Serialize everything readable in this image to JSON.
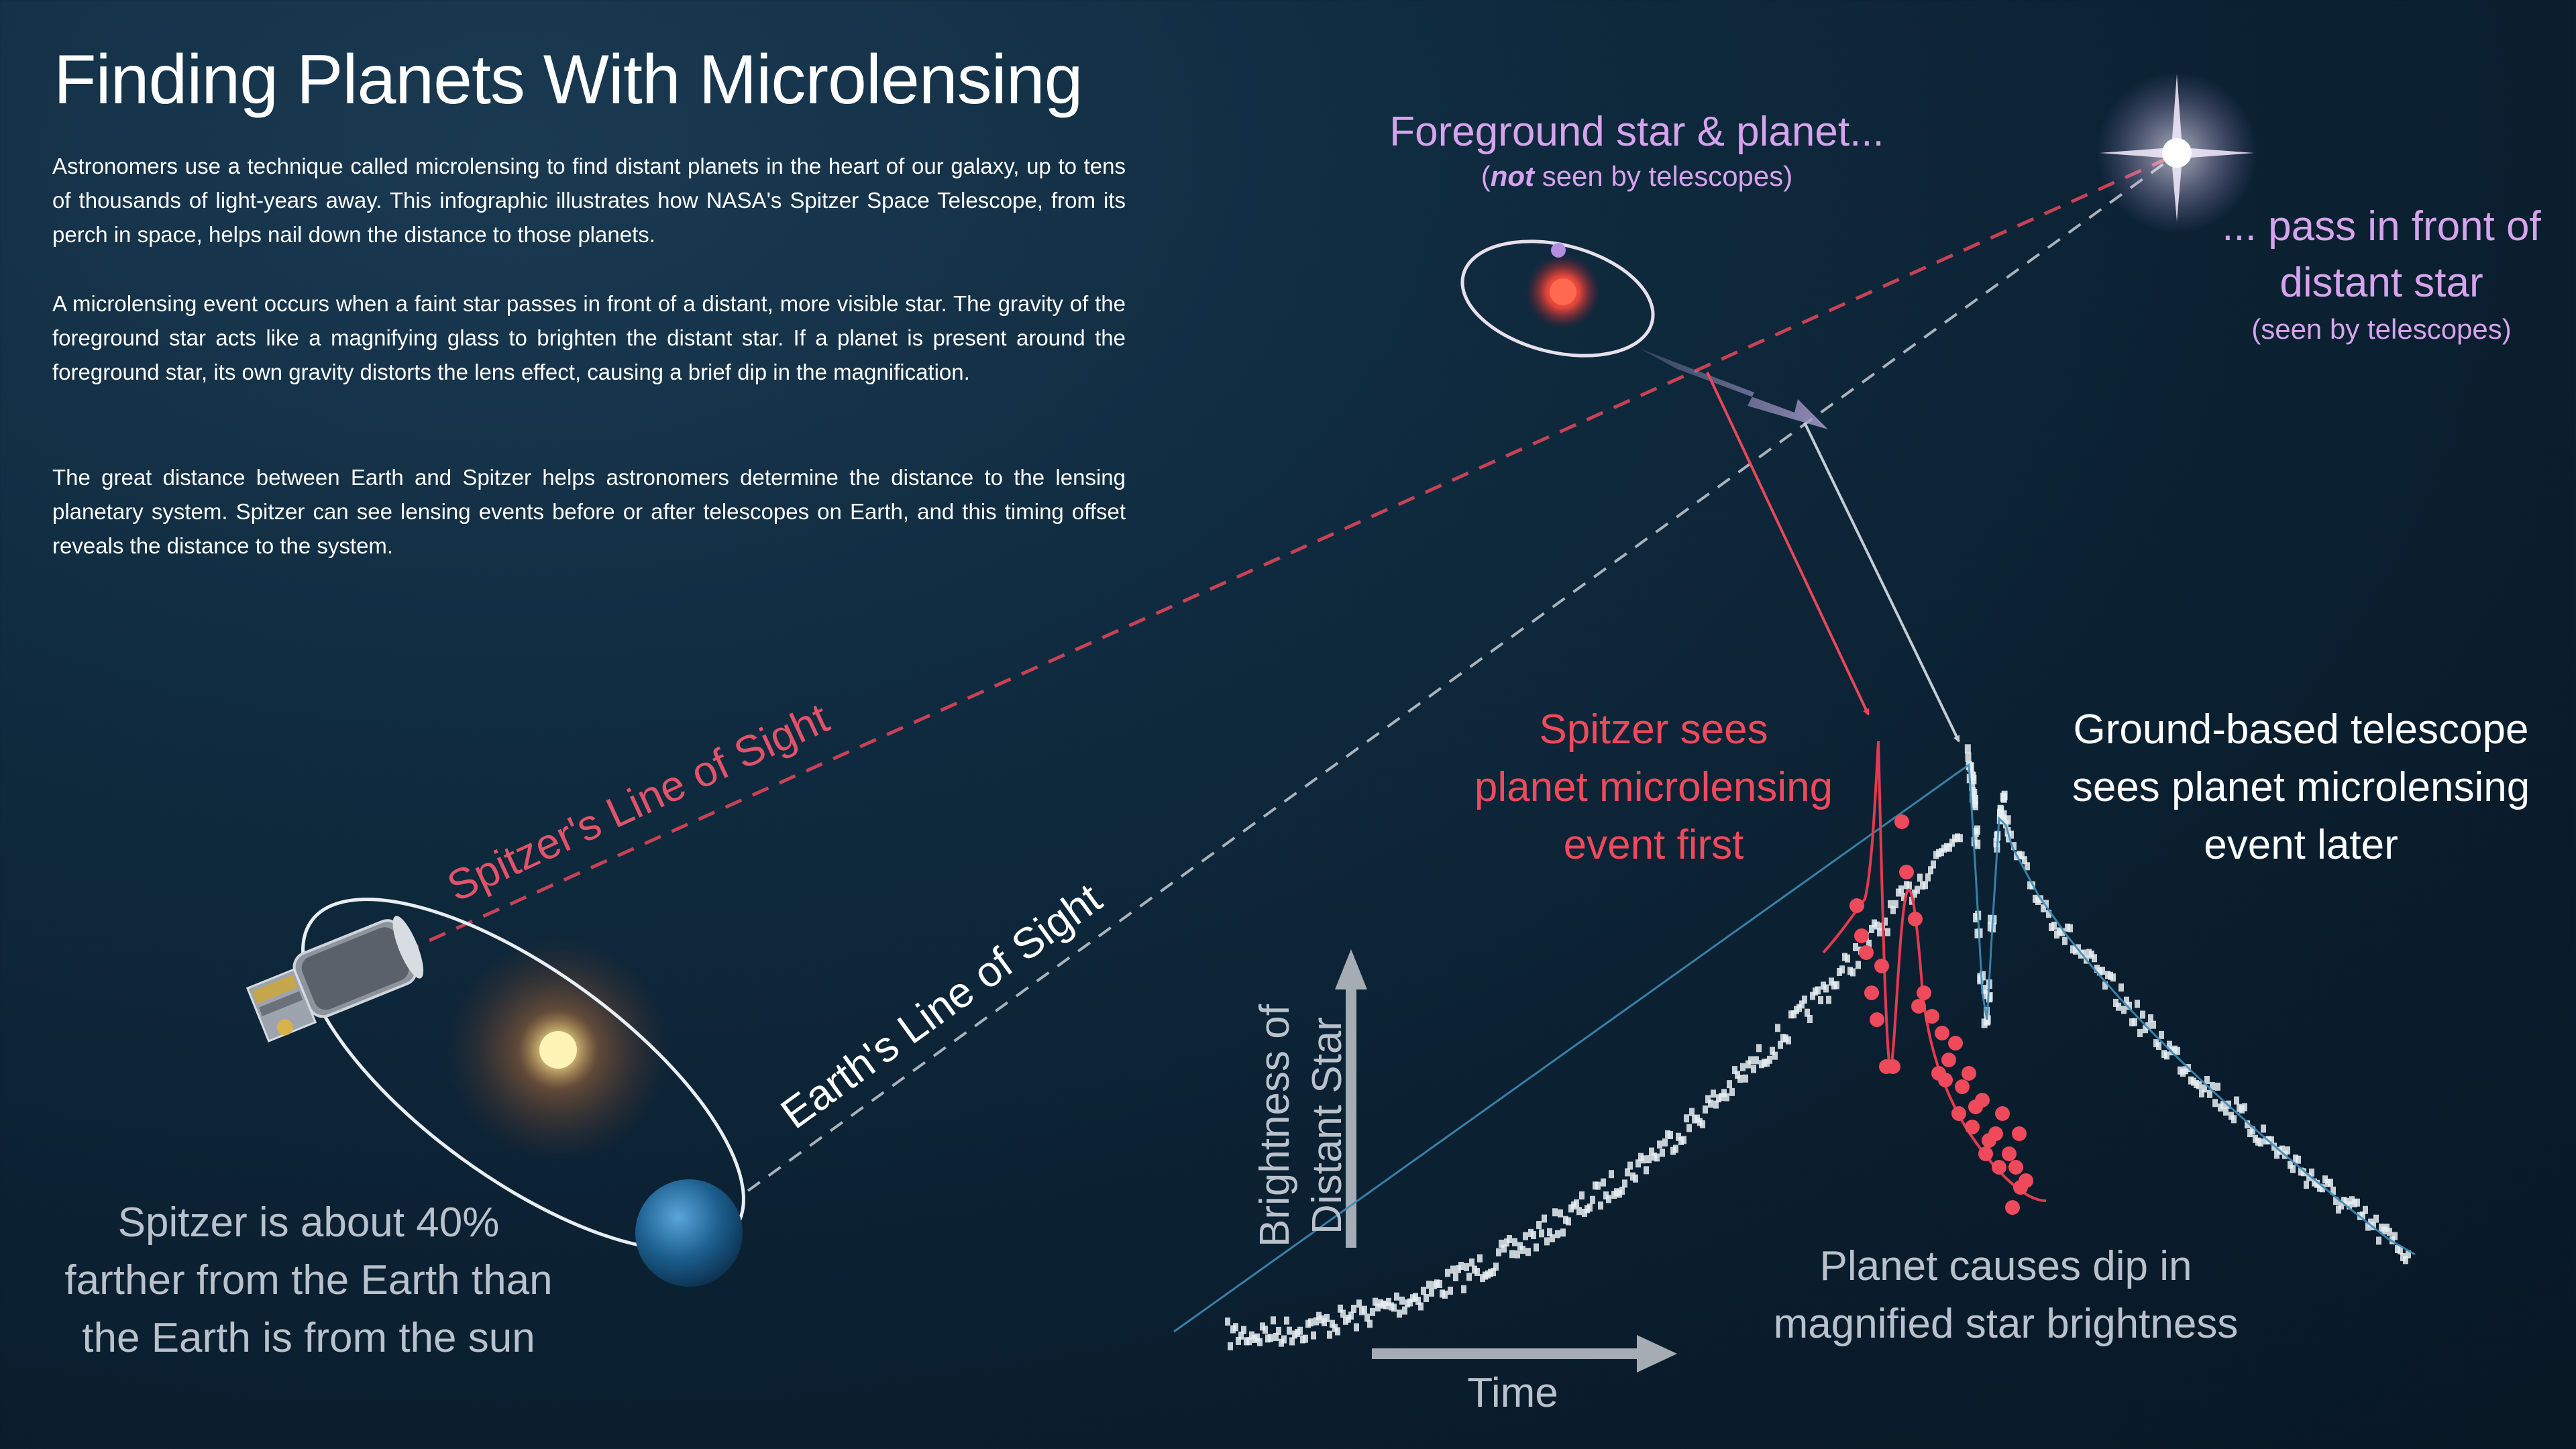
{
  "title": "Finding Planets With Microlensing",
  "paragraphs": [
    "Astronomers use a technique called microlensing to find distant planets in the heart of our galaxy, up to tens of thousands of light-years away. This infographic illustrates how NASA's Spitzer Space Telescope, from its perch in space, helps nail down the distance to those planets.",
    "A microlensing event occurs when a faint star passes in front of a distant, more visible star. The gravity of the foreground star acts like a magnifying glass to brighten the distant star. If a planet is present around the foreground star, its own gravity distorts the lens effect, causing a brief dip in the magnification.",
    "The great distance between Earth and Spitzer helps astronomers determine the distance to the lensing planetary system. Spitzer can see lensing events before or after telescopes on Earth, and this timing offset reveals the distance to the system."
  ],
  "labels": {
    "foreground_main": "Foreground star & planet...",
    "foreground_sub_em": "not",
    "foreground_sub_rest": " seen by telescopes)",
    "foreground_sub_open": "(",
    "distant_line1": "... pass in front of",
    "distant_line2": "distant star",
    "distant_sub": "(seen by telescopes)",
    "spitzer_los": "Spitzer's Line of Sight",
    "earth_los": "Earth's Line of Sight",
    "spitzer_distance_1": "Spitzer is about 40%",
    "spitzer_distance_2": "farther from the Earth than",
    "spitzer_distance_3": "the Earth is from the sun",
    "spitzer_sees_1": "Spitzer sees",
    "spitzer_sees_2": "planet microlensing",
    "spitzer_sees_3": "event first",
    "ground_sees_1": "Ground-based telescope",
    "ground_sees_2": "sees planet microlensing",
    "ground_sees_3": "event later",
    "dip_1": "Planet causes dip in",
    "dip_2": "magnified star brightness",
    "y_axis_1": "Brightness of",
    "y_axis_2": "Distant Star",
    "x_axis": "Time"
  },
  "colors": {
    "background": "#0c2233",
    "spitzer_red": "#ef4a5c",
    "earth_grey": "#b9c2cc",
    "purple_label": "#d6a3ec",
    "ground_data": "#e8eef2",
    "fit_line": "#3d8bb5"
  },
  "icons": {
    "distant_star": "distant-star-icon",
    "foreground_star": "foreground-star-icon",
    "planet": "planet-icon",
    "sun": "sun-icon",
    "earth": "earth-icon",
    "spitzer": "spitzer-telescope-icon"
  }
}
